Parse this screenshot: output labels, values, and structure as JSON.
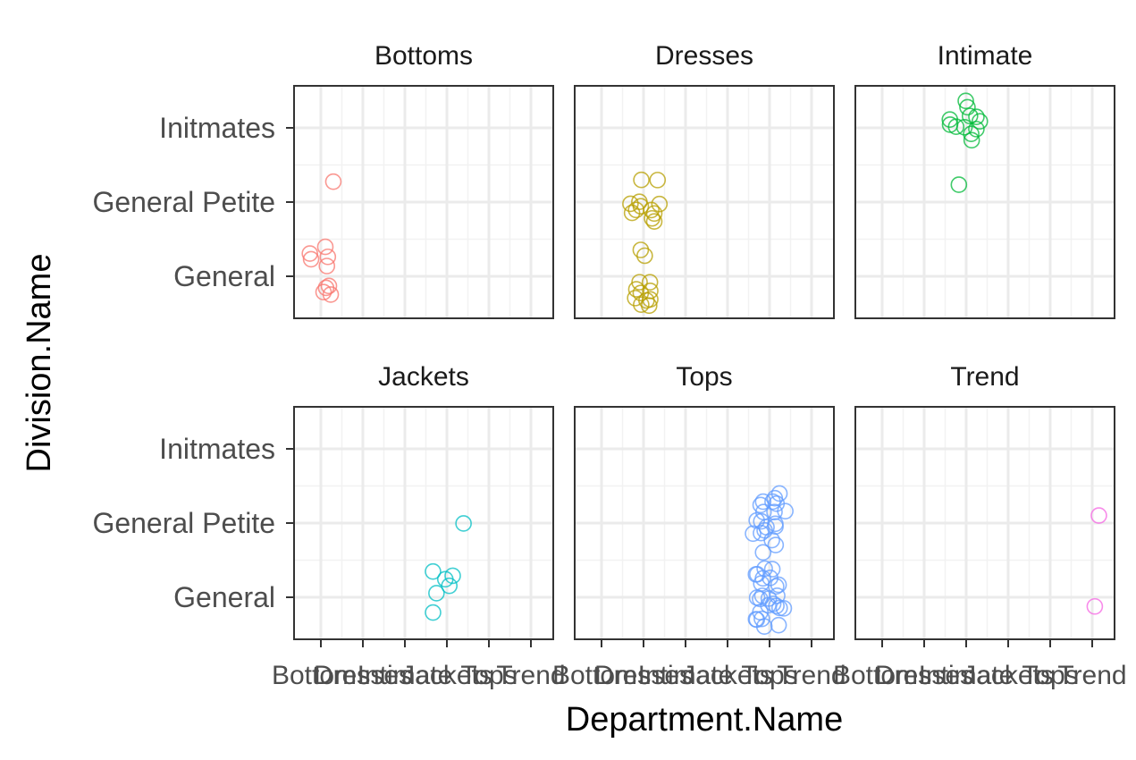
{
  "chart_data": {
    "type": "scatter",
    "facet_by": "Department.Name",
    "xlabel": "Department.Name",
    "ylabel": "Division.Name",
    "x_categories": [
      "Bottoms",
      "Dresses",
      "Intimate",
      "Jackets",
      "Tops",
      "Trend"
    ],
    "y_categories": [
      "General",
      "General Petite",
      "Initmates"
    ],
    "jitter": true,
    "marker": "hollow circle",
    "grid": true,
    "facets": [
      {
        "name": "Bottoms",
        "color": "#F8766D",
        "points": [
          [
            1.0,
            1.0
          ],
          [
            1.0,
            1.0
          ],
          [
            1.0,
            1.0
          ],
          [
            1.0,
            1.0
          ],
          [
            1.0,
            1.0
          ],
          [
            1.0,
            1.0
          ],
          [
            1.0,
            1.0
          ],
          [
            1.0,
            1.0
          ],
          [
            1.0,
            1.0
          ],
          [
            1.0,
            2.0
          ]
        ]
      },
      {
        "name": "Dresses",
        "color": "#B79F00",
        "points": [
          [
            2.0,
            2.0
          ],
          [
            2.0,
            2.0
          ],
          [
            2.0,
            2.0
          ],
          [
            2.0,
            2.0
          ],
          [
            2.0,
            2.0
          ],
          [
            2.0,
            2.0
          ],
          [
            2.0,
            2.0
          ],
          [
            2.0,
            2.0
          ],
          [
            2.0,
            2.0
          ],
          [
            2.0,
            2.0
          ],
          [
            2.0,
            2.0
          ],
          [
            2.0,
            2.0
          ],
          [
            2.0,
            1.0
          ],
          [
            2.0,
            1.0
          ],
          [
            2.0,
            1.0
          ],
          [
            2.0,
            1.0
          ],
          [
            2.0,
            1.0
          ],
          [
            2.0,
            1.0
          ],
          [
            2.0,
            1.0
          ],
          [
            2.0,
            1.0
          ],
          [
            2.0,
            1.0
          ],
          [
            2.0,
            1.0
          ],
          [
            2.0,
            1.0
          ],
          [
            2.0,
            1.0
          ]
        ]
      },
      {
        "name": "Intimate",
        "color": "#00BA38",
        "points": [
          [
            3.0,
            3.0
          ],
          [
            3.0,
            3.0
          ],
          [
            3.0,
            3.0
          ],
          [
            3.0,
            3.0
          ],
          [
            3.0,
            3.0
          ],
          [
            3.0,
            3.0
          ],
          [
            3.0,
            3.0
          ],
          [
            3.0,
            3.0
          ],
          [
            3.0,
            3.0
          ],
          [
            3.0,
            3.0
          ],
          [
            3.0,
            3.0
          ],
          [
            3.0,
            3.0
          ],
          [
            3.0,
            2.0
          ]
        ]
      },
      {
        "name": "Jackets",
        "color": "#00BFC4",
        "points": [
          [
            4.0,
            2.0
          ],
          [
            4.0,
            1.0
          ],
          [
            4.0,
            1.0
          ],
          [
            4.0,
            1.0
          ],
          [
            4.0,
            1.0
          ],
          [
            4.0,
            1.0
          ],
          [
            4.0,
            1.0
          ]
        ]
      },
      {
        "name": "Tops",
        "color": "#619CFF",
        "points": [
          [
            5.0,
            2.0
          ],
          [
            5.0,
            2.0
          ],
          [
            5.0,
            2.0
          ],
          [
            5.0,
            2.0
          ],
          [
            5.0,
            2.0
          ],
          [
            5.0,
            2.0
          ],
          [
            5.0,
            2.0
          ],
          [
            5.0,
            2.0
          ],
          [
            5.0,
            2.0
          ],
          [
            5.0,
            2.0
          ],
          [
            5.0,
            2.0
          ],
          [
            5.0,
            2.0
          ],
          [
            5.0,
            2.0
          ],
          [
            5.0,
            2.0
          ],
          [
            5.0,
            2.0
          ],
          [
            5.0,
            2.0
          ],
          [
            5.0,
            2.0
          ],
          [
            5.0,
            2.0
          ],
          [
            5.0,
            2.0
          ],
          [
            5.0,
            2.0
          ],
          [
            5.0,
            1.0
          ],
          [
            5.0,
            1.0
          ],
          [
            5.0,
            1.0
          ],
          [
            5.0,
            1.0
          ],
          [
            5.0,
            1.0
          ],
          [
            5.0,
            1.0
          ],
          [
            5.0,
            1.0
          ],
          [
            5.0,
            1.0
          ],
          [
            5.0,
            1.0
          ],
          [
            5.0,
            1.0
          ],
          [
            5.0,
            1.0
          ],
          [
            5.0,
            1.0
          ],
          [
            5.0,
            1.0
          ],
          [
            5.0,
            1.0
          ],
          [
            5.0,
            1.0
          ],
          [
            5.0,
            1.0
          ],
          [
            5.0,
            1.0
          ],
          [
            5.0,
            1.0
          ],
          [
            5.0,
            1.0
          ],
          [
            5.0,
            1.0
          ],
          [
            5.0,
            1.0
          ],
          [
            5.0,
            1.0
          ],
          [
            5.0,
            1.0
          ],
          [
            5.0,
            1.0
          ],
          [
            5.0,
            1.0
          ]
        ]
      },
      {
        "name": "Trend",
        "color": "#F564E3",
        "points": [
          [
            6.0,
            2.0
          ],
          [
            6.0,
            1.0
          ]
        ]
      }
    ]
  }
}
